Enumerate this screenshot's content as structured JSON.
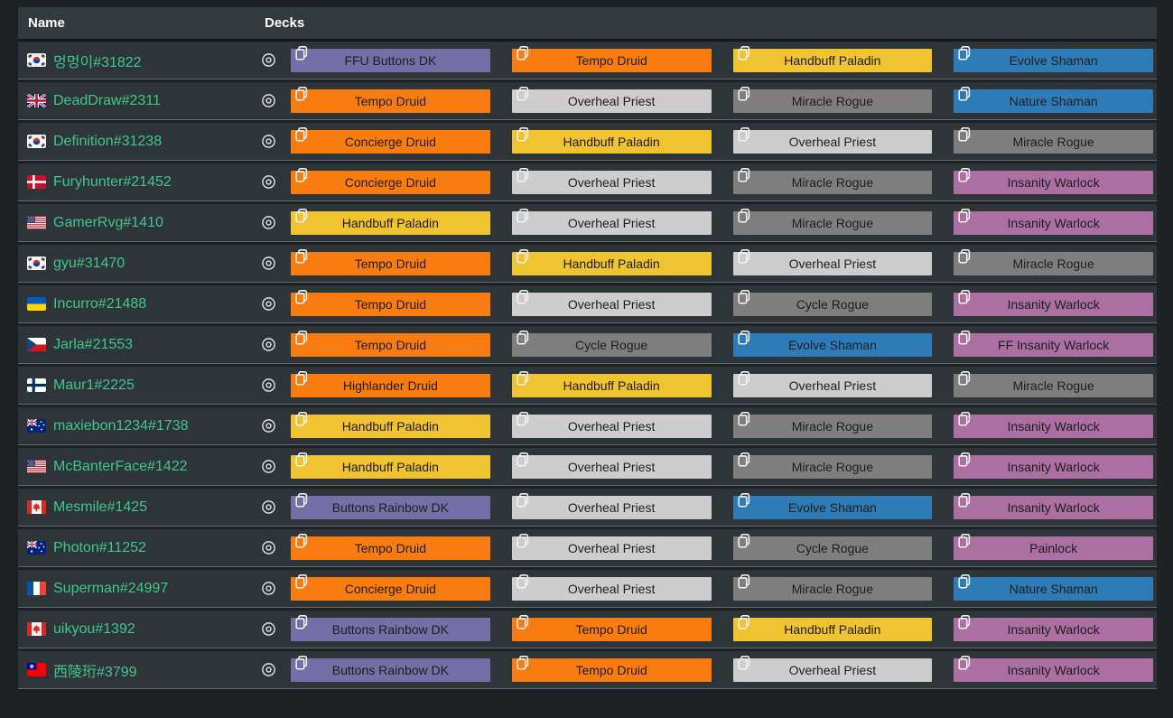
{
  "header": {
    "name_label": "Name",
    "decks_label": "Decks"
  },
  "class_colors": {
    "druid": "#f97c11",
    "deathknight": "#746fa6",
    "paladin": "#f0c330",
    "priest": "#cdcdcd",
    "rogue": "#7e7e7e",
    "shaman": "#2d7cb8",
    "warlock": "#ab6fa2"
  },
  "ui_colors": {
    "page_bg": "#1d2124",
    "row_bg": "#2e3539",
    "header_bg": "#323a3e",
    "player_name": "#40c68d"
  },
  "icons": {
    "view": "eye-icon",
    "copy": "copy-icon"
  },
  "players": [
    {
      "name": "멍멍이#31822",
      "flag": "kr",
      "decks": [
        {
          "label": "FFU Buttons DK",
          "class": "deathknight"
        },
        {
          "label": "Tempo Druid",
          "class": "druid"
        },
        {
          "label": "Handbuff Paladin",
          "class": "paladin"
        },
        {
          "label": "Evolve Shaman",
          "class": "shaman"
        }
      ]
    },
    {
      "name": "DeadDraw#2311",
      "flag": "gb",
      "decks": [
        {
          "label": "Tempo Druid",
          "class": "druid"
        },
        {
          "label": "Overheal Priest",
          "class": "priest"
        },
        {
          "label": "Miracle Rogue",
          "class": "rogue"
        },
        {
          "label": "Nature Shaman",
          "class": "shaman"
        }
      ]
    },
    {
      "name": "Definition#31238",
      "flag": "kr",
      "decks": [
        {
          "label": "Concierge Druid",
          "class": "druid"
        },
        {
          "label": "Handbuff Paladin",
          "class": "paladin"
        },
        {
          "label": "Overheal Priest",
          "class": "priest"
        },
        {
          "label": "Miracle Rogue",
          "class": "rogue"
        }
      ]
    },
    {
      "name": "Furyhunter#21452",
      "flag": "dk",
      "decks": [
        {
          "label": "Concierge Druid",
          "class": "druid"
        },
        {
          "label": "Overheal Priest",
          "class": "priest"
        },
        {
          "label": "Miracle Rogue",
          "class": "rogue"
        },
        {
          "label": "Insanity Warlock",
          "class": "warlock"
        }
      ]
    },
    {
      "name": "GamerRvg#1410",
      "flag": "us",
      "decks": [
        {
          "label": "Handbuff Paladin",
          "class": "paladin"
        },
        {
          "label": "Overheal Priest",
          "class": "priest"
        },
        {
          "label": "Miracle Rogue",
          "class": "rogue"
        },
        {
          "label": "Insanity Warlock",
          "class": "warlock"
        }
      ]
    },
    {
      "name": "gyu#31470",
      "flag": "kr",
      "decks": [
        {
          "label": "Tempo Druid",
          "class": "druid"
        },
        {
          "label": "Handbuff Paladin",
          "class": "paladin"
        },
        {
          "label": "Overheal Priest",
          "class": "priest"
        },
        {
          "label": "Miracle Rogue",
          "class": "rogue"
        }
      ]
    },
    {
      "name": "Incurro#21488",
      "flag": "ua",
      "decks": [
        {
          "label": "Tempo Druid",
          "class": "druid"
        },
        {
          "label": "Overheal Priest",
          "class": "priest"
        },
        {
          "label": "Cycle Rogue",
          "class": "rogue"
        },
        {
          "label": "Insanity Warlock",
          "class": "warlock"
        }
      ]
    },
    {
      "name": "Jarla#21553",
      "flag": "cz",
      "decks": [
        {
          "label": "Tempo Druid",
          "class": "druid"
        },
        {
          "label": "Cycle Rogue",
          "class": "rogue"
        },
        {
          "label": "Evolve Shaman",
          "class": "shaman"
        },
        {
          "label": "FF Insanity Warlock",
          "class": "warlock"
        }
      ]
    },
    {
      "name": "Maur1#2225",
      "flag": "fi",
      "decks": [
        {
          "label": "Highlander Druid",
          "class": "druid"
        },
        {
          "label": "Handbuff Paladin",
          "class": "paladin"
        },
        {
          "label": "Overheal Priest",
          "class": "priest"
        },
        {
          "label": "Miracle Rogue",
          "class": "rogue"
        }
      ]
    },
    {
      "name": "maxiebon1234#1738",
      "flag": "au",
      "decks": [
        {
          "label": "Handbuff Paladin",
          "class": "paladin"
        },
        {
          "label": "Overheal Priest",
          "class": "priest"
        },
        {
          "label": "Miracle Rogue",
          "class": "rogue"
        },
        {
          "label": "Insanity Warlock",
          "class": "warlock"
        }
      ]
    },
    {
      "name": "McBanterFace#1422",
      "flag": "us",
      "decks": [
        {
          "label": "Handbuff Paladin",
          "class": "paladin"
        },
        {
          "label": "Overheal Priest",
          "class": "priest"
        },
        {
          "label": "Miracle Rogue",
          "class": "rogue"
        },
        {
          "label": "Insanity Warlock",
          "class": "warlock"
        }
      ]
    },
    {
      "name": "Mesmile#1425",
      "flag": "ca",
      "decks": [
        {
          "label": "Buttons Rainbow DK",
          "class": "deathknight"
        },
        {
          "label": "Overheal Priest",
          "class": "priest"
        },
        {
          "label": "Evolve Shaman",
          "class": "shaman"
        },
        {
          "label": "Insanity Warlock",
          "class": "warlock"
        }
      ]
    },
    {
      "name": "Photon#11252",
      "flag": "au",
      "decks": [
        {
          "label": "Tempo Druid",
          "class": "druid"
        },
        {
          "label": "Overheal Priest",
          "class": "priest"
        },
        {
          "label": "Cycle Rogue",
          "class": "rogue"
        },
        {
          "label": "Painlock",
          "class": "warlock"
        }
      ]
    },
    {
      "name": "Superman#24997",
      "flag": "fr",
      "decks": [
        {
          "label": "Concierge Druid",
          "class": "druid"
        },
        {
          "label": "Overheal Priest",
          "class": "priest"
        },
        {
          "label": "Miracle Rogue",
          "class": "rogue"
        },
        {
          "label": "Nature Shaman",
          "class": "shaman"
        }
      ]
    },
    {
      "name": "uikyou#1392",
      "flag": "ca",
      "decks": [
        {
          "label": "Buttons Rainbow DK",
          "class": "deathknight"
        },
        {
          "label": "Tempo Druid",
          "class": "druid"
        },
        {
          "label": "Handbuff Paladin",
          "class": "paladin"
        },
        {
          "label": "Insanity Warlock",
          "class": "warlock"
        }
      ]
    },
    {
      "name": "西陵珩#3799",
      "flag": "tw",
      "decks": [
        {
          "label": "Buttons Rainbow DK",
          "class": "deathknight"
        },
        {
          "label": "Tempo Druid",
          "class": "druid"
        },
        {
          "label": "Overheal Priest",
          "class": "priest"
        },
        {
          "label": "Insanity Warlock",
          "class": "warlock"
        }
      ]
    }
  ]
}
